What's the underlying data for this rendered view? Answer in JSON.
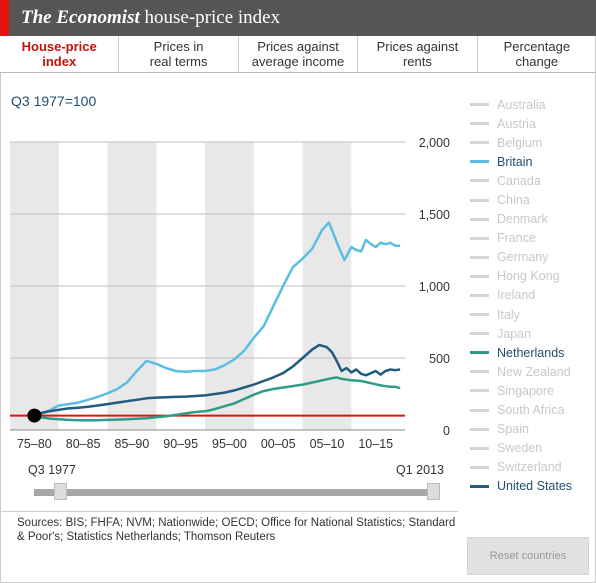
{
  "header": {
    "title_italic": "The Economist",
    "title_rest": " house-price index"
  },
  "tabs": [
    {
      "label": "House-price\nindex",
      "active": true
    },
    {
      "label": "Prices in\nreal terms",
      "active": false
    },
    {
      "label": "Prices against\naverage income",
      "active": false
    },
    {
      "label": "Prices against\nrents",
      "active": false
    },
    {
      "label": "Percentage\nchange",
      "active": false
    }
  ],
  "baseline_label": "Q3 1977=100",
  "legend": [
    {
      "name": "Australia",
      "active": false
    },
    {
      "name": "Austria",
      "active": false
    },
    {
      "name": "Belgium",
      "active": false
    },
    {
      "name": "Britain",
      "active": true,
      "color": "#5bbde1"
    },
    {
      "name": "Canada",
      "active": false
    },
    {
      "name": "China",
      "active": false
    },
    {
      "name": "Denmark",
      "active": false
    },
    {
      "name": "France",
      "active": false
    },
    {
      "name": "Germany",
      "active": false
    },
    {
      "name": "Hong Kong",
      "active": false
    },
    {
      "name": "Ireland",
      "active": false
    },
    {
      "name": "Italy",
      "active": false
    },
    {
      "name": "Japan",
      "active": false
    },
    {
      "name": "Netherlands",
      "active": true,
      "color": "#2e9c88"
    },
    {
      "name": "New Zealand",
      "active": false
    },
    {
      "name": "Singapore",
      "active": false
    },
    {
      "name": "South Africa",
      "active": false
    },
    {
      "name": "Spain",
      "active": false
    },
    {
      "name": "Sweden",
      "active": false
    },
    {
      "name": "Switzerland",
      "active": false
    },
    {
      "name": "United States",
      "active": true,
      "color": "#1f5c7d"
    }
  ],
  "inactive_color": "#d4d4d4",
  "chart_data": {
    "type": "line",
    "ylim": [
      0,
      2000
    ],
    "y_ticks": [
      0,
      500,
      1000,
      1500,
      2000
    ],
    "y_tick_labels": [
      "0",
      "500",
      "1,000",
      "1,500",
      "2,000"
    ],
    "x_range": [
      1975,
      2015.5
    ],
    "x_bands": [
      "75–80",
      "80–85",
      "85–90",
      "90–95",
      "95–00",
      "00–05",
      "05–10",
      "10–15"
    ],
    "baseline_value": 100,
    "start_marker": {
      "x": 1977.5,
      "y": 100
    },
    "series": [
      {
        "name": "Britain",
        "color": "#5bbde1",
        "points": [
          [
            1977.5,
            100
          ],
          [
            1978,
            110
          ],
          [
            1979,
            135
          ],
          [
            1980,
            170
          ],
          [
            1981,
            180
          ],
          [
            1982,
            190
          ],
          [
            1983,
            210
          ],
          [
            1984,
            230
          ],
          [
            1985,
            255
          ],
          [
            1986,
            285
          ],
          [
            1987,
            330
          ],
          [
            1988,
            410
          ],
          [
            1989,
            480
          ],
          [
            1990,
            460
          ],
          [
            1991,
            430
          ],
          [
            1992,
            410
          ],
          [
            1993,
            405
          ],
          [
            1994,
            410
          ],
          [
            1995,
            410
          ],
          [
            1996,
            420
          ],
          [
            1997,
            450
          ],
          [
            1998,
            490
          ],
          [
            1999,
            550
          ],
          [
            2000,
            640
          ],
          [
            2001,
            720
          ],
          [
            2002,
            860
          ],
          [
            2003,
            1000
          ],
          [
            2004,
            1130
          ],
          [
            2005,
            1190
          ],
          [
            2006,
            1260
          ],
          [
            2007,
            1390
          ],
          [
            2007.7,
            1440
          ],
          [
            2008,
            1390
          ],
          [
            2008.7,
            1270
          ],
          [
            2009.3,
            1180
          ],
          [
            2010,
            1270
          ],
          [
            2010.5,
            1250
          ],
          [
            2011,
            1240
          ],
          [
            2011.5,
            1320
          ],
          [
            2012,
            1290
          ],
          [
            2012.5,
            1270
          ],
          [
            2013,
            1300
          ],
          [
            2013.5,
            1290
          ],
          [
            2014,
            1300
          ],
          [
            2014.5,
            1280
          ],
          [
            2015,
            1280
          ]
        ]
      },
      {
        "name": "Netherlands",
        "color": "#2e9c88",
        "points": [
          [
            1977.5,
            100
          ],
          [
            1978,
            90
          ],
          [
            1979,
            80
          ],
          [
            1980,
            75
          ],
          [
            1981,
            70
          ],
          [
            1982,
            68
          ],
          [
            1983,
            67
          ],
          [
            1984,
            68
          ],
          [
            1985,
            70
          ],
          [
            1986,
            72
          ],
          [
            1987,
            75
          ],
          [
            1988,
            78
          ],
          [
            1989,
            82
          ],
          [
            1990,
            88
          ],
          [
            1991,
            95
          ],
          [
            1992,
            105
          ],
          [
            1993,
            115
          ],
          [
            1994,
            125
          ],
          [
            1995,
            130
          ],
          [
            1996,
            145
          ],
          [
            1997,
            165
          ],
          [
            1998,
            185
          ],
          [
            1999,
            215
          ],
          [
            2000,
            245
          ],
          [
            2001,
            270
          ],
          [
            2002,
            285
          ],
          [
            2003,
            295
          ],
          [
            2004,
            305
          ],
          [
            2005,
            315
          ],
          [
            2006,
            330
          ],
          [
            2007,
            345
          ],
          [
            2008,
            360
          ],
          [
            2008.5,
            365
          ],
          [
            2009,
            355
          ],
          [
            2010,
            345
          ],
          [
            2011,
            340
          ],
          [
            2012,
            325
          ],
          [
            2013,
            310
          ],
          [
            2014,
            300
          ],
          [
            2014.5,
            300
          ],
          [
            2015,
            290
          ]
        ]
      },
      {
        "name": "United States",
        "color": "#1f5c7d",
        "points": [
          [
            1977.5,
            100
          ],
          [
            1978,
            115
          ],
          [
            1979,
            130
          ],
          [
            1980,
            140
          ],
          [
            1981,
            150
          ],
          [
            1982,
            155
          ],
          [
            1983,
            162
          ],
          [
            1984,
            170
          ],
          [
            1985,
            180
          ],
          [
            1986,
            190
          ],
          [
            1987,
            200
          ],
          [
            1988,
            210
          ],
          [
            1989,
            220
          ],
          [
            1990,
            225
          ],
          [
            1991,
            228
          ],
          [
            1992,
            230
          ],
          [
            1993,
            232
          ],
          [
            1994,
            236
          ],
          [
            1995,
            240
          ],
          [
            1996,
            250
          ],
          [
            1997,
            260
          ],
          [
            1998,
            275
          ],
          [
            1999,
            295
          ],
          [
            2000,
            315
          ],
          [
            2001,
            340
          ],
          [
            2002,
            365
          ],
          [
            2003,
            395
          ],
          [
            2004,
            440
          ],
          [
            2005,
            500
          ],
          [
            2006,
            560
          ],
          [
            2006.7,
            590
          ],
          [
            2007,
            585
          ],
          [
            2007.5,
            575
          ],
          [
            2008,
            540
          ],
          [
            2008.5,
            480
          ],
          [
            2009,
            410
          ],
          [
            2009.5,
            430
          ],
          [
            2010,
            400
          ],
          [
            2010.5,
            420
          ],
          [
            2011,
            390
          ],
          [
            2011.5,
            380
          ],
          [
            2012,
            395
          ],
          [
            2012.5,
            410
          ],
          [
            2013,
            385
          ],
          [
            2013.5,
            410
          ],
          [
            2014,
            420
          ],
          [
            2014.5,
            415
          ],
          [
            2015,
            420
          ]
        ]
      }
    ]
  },
  "slider": {
    "start_label": "Q3 1977",
    "end_label": "Q1 2013"
  },
  "sources": "Sources: BIS; FHFA; NVM; Nationwide; OECD; Office for National Statistics; Standard & Poor's; Statistics Netherlands; Thomson Reuters",
  "reset_label": "Reset countries"
}
